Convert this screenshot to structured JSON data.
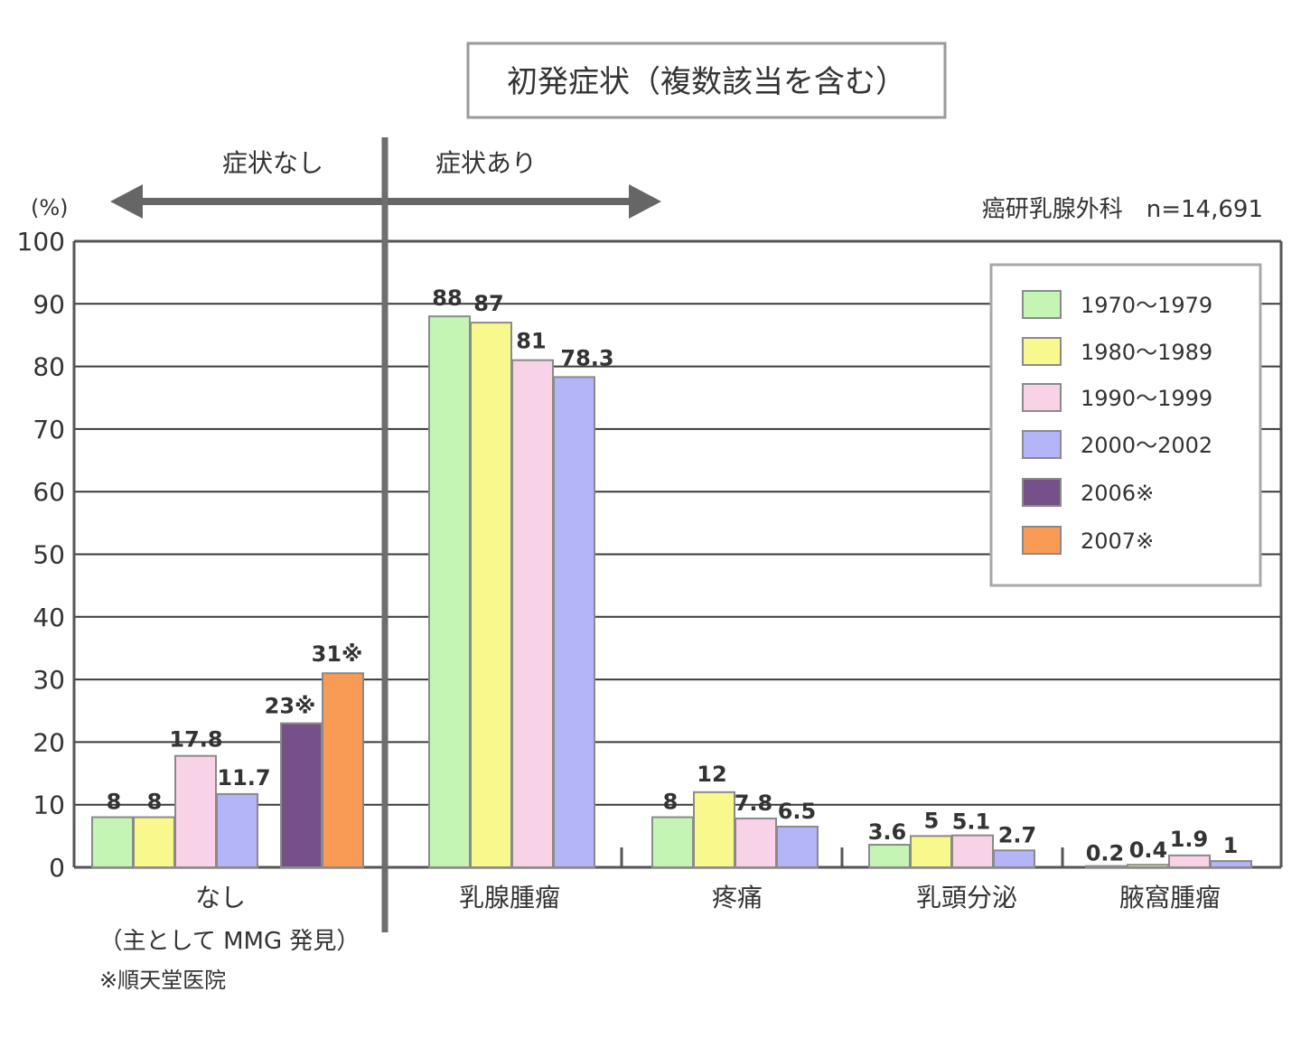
{
  "chart_data": {
    "type": "bar",
    "title": "初発症状（複数該当を含む）",
    "source_note": "癌研乳腺外科　n=14,691",
    "ylabel": "(%)",
    "ylim": [
      0,
      100
    ],
    "yticks": [
      "0",
      "10",
      "20",
      "30",
      "40",
      "50",
      "60",
      "70",
      "80",
      "90",
      "100"
    ],
    "grid": true,
    "legend_position": "top-right",
    "region_left_label": "症状なし",
    "region_right_label": "症状あり",
    "categories": [
      "なし",
      "乳腺腫瘤",
      "疼痛",
      "乳頭分泌",
      "腋窩腫瘤"
    ],
    "category_subtitle": "（主として MMG 発見）",
    "footnote": "※順天堂医院",
    "series": [
      {
        "name": "1970～1979",
        "color": "#c4f5b4",
        "values": [
          8,
          88,
          8,
          3.6,
          0.2
        ],
        "labels": [
          "8",
          "88",
          "8",
          "3.6",
          "0.2"
        ]
      },
      {
        "name": "1980～1989",
        "color": "#f8f88c",
        "values": [
          8,
          87,
          12,
          5,
          0.4
        ],
        "labels": [
          "8",
          "87",
          "12",
          "5",
          "0.4"
        ]
      },
      {
        "name": "1990～1999",
        "color": "#f8d2e6",
        "values": [
          17.8,
          81,
          7.8,
          5.1,
          1.9
        ],
        "labels": [
          "17.8",
          "81",
          "7.8",
          "5.1",
          "1.9"
        ]
      },
      {
        "name": "2000～2002",
        "color": "#b4b4f8",
        "values": [
          11.7,
          78.3,
          6.5,
          2.7,
          1
        ],
        "labels": [
          "11.7",
          "78.3",
          "6.5",
          "2.7",
          "1"
        ]
      },
      {
        "name": "2006※",
        "color": "#755089",
        "values": [
          23,
          null,
          null,
          null,
          null
        ],
        "labels": [
          "23※",
          "",
          "",
          "",
          ""
        ]
      },
      {
        "name": "2007※",
        "color": "#f99b55",
        "values": [
          31,
          null,
          null,
          null,
          null
        ],
        "labels": [
          "31※",
          "",
          "",
          "",
          ""
        ]
      }
    ]
  }
}
